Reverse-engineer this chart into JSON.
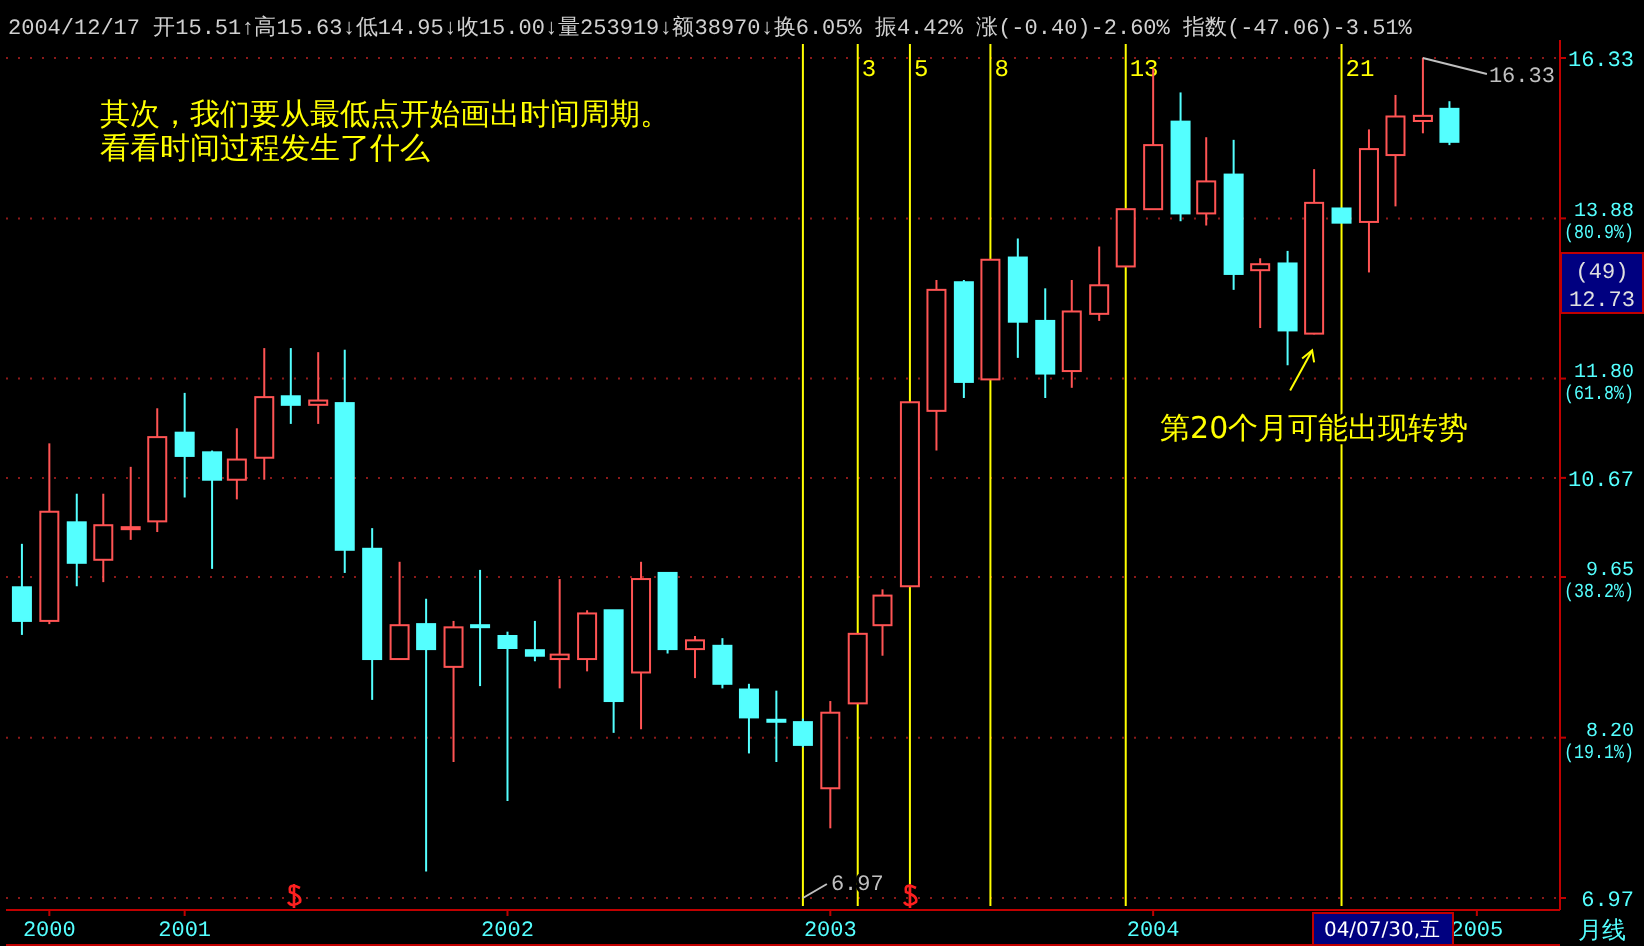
{
  "chart_data": {
    "type": "candlestick",
    "x": [
      "2000-07",
      "2000-08",
      "2000-09",
      "2000-10",
      "2000-11",
      "2000-12",
      "2001-01",
      "2001-02",
      "2001-03",
      "2001-04",
      "2001-05",
      "2001-06",
      "2001-07",
      "2001-08",
      "2001-09",
      "2001-10",
      "2001-11",
      "2001-12",
      "2002-01",
      "2002-02",
      "2002-03",
      "2002-04",
      "2002-05",
      "2002-06",
      "2002-07",
      "2002-08",
      "2002-09",
      "2002-10",
      "2002-11",
      "2002-12",
      "2003-01",
      "2003-02",
      "2003-03",
      "2003-04",
      "2003-05",
      "2003-06",
      "2003-07",
      "2003-08",
      "2003-09",
      "2003-10",
      "2003-11",
      "2003-12",
      "2004-01",
      "2004-02",
      "2004-03",
      "2004-04",
      "2004-05",
      "2004-06",
      "2004-07",
      "2004-08",
      "2004-09",
      "2004-10",
      "2004-11",
      "2004-12"
    ],
    "ohlc": [
      [
        9.55,
        9.98,
        9.1,
        9.23
      ],
      [
        9.23,
        11.05,
        9.2,
        10.31
      ],
      [
        10.2,
        10.5,
        9.56,
        9.79
      ],
      [
        9.82,
        10.5,
        9.6,
        10.17
      ],
      [
        10.14,
        10.79,
        10.02,
        10.15
      ],
      [
        10.21,
        11.45,
        10.1,
        11.12
      ],
      [
        11.17,
        11.63,
        10.46,
        10.91
      ],
      [
        10.95,
        10.97,
        9.73,
        10.65
      ],
      [
        10.65,
        11.22,
        10.44,
        10.87
      ],
      [
        10.89,
        12.17,
        10.65,
        11.58
      ],
      [
        11.59,
        12.17,
        11.27,
        11.49
      ],
      [
        11.49,
        12.12,
        11.27,
        11.54
      ],
      [
        11.51,
        12.15,
        9.69,
        9.92
      ],
      [
        9.93,
        10.14,
        8.52,
        8.88
      ],
      [
        8.88,
        9.8,
        8.88,
        9.19
      ],
      [
        9.2,
        9.44,
        7.16,
        8.97
      ],
      [
        8.81,
        9.23,
        8.0,
        9.17
      ],
      [
        9.19,
        9.72,
        8.64,
        9.18
      ],
      [
        9.09,
        9.13,
        7.69,
        8.98
      ],
      [
        8.96,
        9.23,
        8.86,
        8.91
      ],
      [
        8.88,
        9.63,
        8.62,
        8.92
      ],
      [
        8.88,
        9.33,
        8.77,
        9.3
      ],
      [
        9.33,
        9.33,
        8.24,
        8.51
      ],
      [
        8.76,
        9.8,
        8.27,
        9.63
      ],
      [
        9.69,
        9.69,
        8.93,
        8.97
      ],
      [
        8.97,
        9.09,
        8.71,
        9.05
      ],
      [
        9.0,
        9.07,
        8.62,
        8.66
      ],
      [
        8.61,
        8.66,
        8.07,
        8.37
      ],
      [
        8.35,
        8.6,
        8.0,
        8.34
      ],
      [
        8.33,
        8.36,
        8.12,
        8.14
      ],
      [
        7.79,
        8.51,
        7.48,
        8.41
      ],
      [
        8.49,
        9.11,
        8.49,
        9.11
      ],
      [
        9.19,
        9.53,
        8.91,
        9.47
      ],
      [
        9.56,
        11.52,
        9.56,
        11.52
      ],
      [
        11.42,
        13.04,
        10.97,
        12.91
      ],
      [
        13.01,
        13.04,
        11.57,
        11.76
      ],
      [
        11.79,
        13.31,
        11.79,
        13.31
      ],
      [
        13.34,
        13.6,
        12.05,
        12.5
      ],
      [
        12.51,
        12.93,
        11.57,
        11.86
      ],
      [
        11.89,
        13.04,
        11.69,
        12.63
      ],
      [
        12.6,
        13.49,
        12.51,
        12.97
      ],
      [
        13.22,
        14.01,
        13.22,
        14.01
      ],
      [
        14.01,
        16.16,
        14.01,
        14.95
      ],
      [
        15.31,
        15.77,
        13.84,
        13.95
      ],
      [
        13.95,
        15.07,
        13.78,
        14.41
      ],
      [
        14.51,
        15.03,
        12.91,
        13.12
      ],
      [
        13.17,
        13.33,
        12.42,
        13.25
      ],
      [
        13.26,
        13.43,
        11.96,
        12.39
      ],
      [
        12.35,
        14.59,
        12.34,
        14.1
      ],
      [
        14.02,
        14.02,
        13.82,
        13.82
      ],
      [
        13.83,
        15.19,
        13.14,
        14.89
      ],
      [
        14.8,
        15.73,
        14.05,
        15.39
      ],
      [
        15.32,
        16.33,
        15.13,
        15.4
      ],
      [
        15.51,
        15.63,
        14.95,
        15.0
      ]
    ],
    "colors": [
      "#54ffff",
      "#ff5454",
      "#54ffff",
      "#ff5454",
      "#ff5454",
      "#ff5454",
      "#54ffff",
      "#54ffff",
      "#ff5454",
      "#ff5454",
      "#54ffff",
      "#ff5454",
      "#54ffff",
      "#54ffff",
      "#ff5454",
      "#54ffff",
      "#ff5454",
      "#54ffff",
      "#54ffff",
      "#54ffff",
      "#ff5454",
      "#ff5454",
      "#54ffff",
      "#ff5454",
      "#54ffff",
      "#ff5454",
      "#54ffff",
      "#54ffff",
      "#54ffff",
      "#54ffff",
      "#ff5454",
      "#ff5454",
      "#ff5454",
      "#ff5454",
      "#ff5454",
      "#54ffff",
      "#ff5454",
      "#54ffff",
      "#54ffff",
      "#ff5454",
      "#ff5454",
      "#ff5454",
      "#ff5454",
      "#54ffff",
      "#ff5454",
      "#54ffff",
      "#ff5454",
      "#54ffff",
      "#ff5454",
      "#54ffff",
      "#ff5454",
      "#ff5454",
      "#ff5454",
      "#54ffff"
    ],
    "log": "y",
    "grid": "y",
    "ylim": [
      6.97,
      16.33
    ],
    "yticks": [
      {
        "value": 6.97,
        "label": "6.97"
      },
      {
        "value": 8.2,
        "label": "8.20 (19.1%)"
      },
      {
        "value": 9.65,
        "label": "9.65 (38.2%)"
      },
      {
        "value": 10.67,
        "label": "10.67"
      },
      {
        "value": 11.8,
        "label": "11.80 (61.8%)"
      },
      {
        "value": 13.88,
        "label": "13.88 (80.9%)"
      },
      {
        "value": 16.33,
        "label": "16.33"
      }
    ],
    "xlim": [
      "2000-06-13",
      "2005-04-05"
    ],
    "xticks": [
      {
        "value": "2000-08",
        "label": "2000"
      },
      {
        "value": "2001-01",
        "label": "2001"
      },
      {
        "value": "2002-01",
        "label": "2002"
      },
      {
        "value": "2003-01",
        "label": "2003"
      },
      {
        "value": "2004-01",
        "label": "2004"
      },
      {
        "value": "2005-01",
        "label": "2005"
      }
    ],
    "ref_lines": [
      {
        "axis": "x",
        "value": "2002-12",
        "color": "#ffff00"
      },
      {
        "axis": "x",
        "value": "2003-02",
        "label": "3",
        "color": "#ffff00"
      },
      {
        "axis": "x",
        "value": "2003-04",
        "label": "5",
        "color": "#ffff00"
      },
      {
        "axis": "x",
        "value": "2003-07",
        "label": "8",
        "color": "#ffff00"
      },
      {
        "axis": "x",
        "value": "2003-12",
        "label": "13",
        "color": "#ffff00"
      },
      {
        "axis": "x",
        "value": "2004-08",
        "label": "21",
        "color": "#ffff00"
      }
    ],
    "annotations": [
      "2004/12/17 开15.51↑高15.63↓低14.95↓收15.00↓量253919↓额38970↓换6.05% 振4.42% 涨(-0.40)-2.60% 指数(-47.06)-3.51%",
      "其次，我们要从最低点开始画出时间周期。",
      "看看时间过程发生了什么",
      "(49) 12.73",
      "04/07/30,五",
      "月线",
      {
        "text": "第20个月可能出现转势",
        "x": "2004-07",
        "y": 12.34
      },
      {
        "text": "16.33",
        "x": "2004-11",
        "y": 16.33
      },
      {
        "text": "6.97",
        "x": "2002-12",
        "y": 6.97
      }
    ]
  }
}
